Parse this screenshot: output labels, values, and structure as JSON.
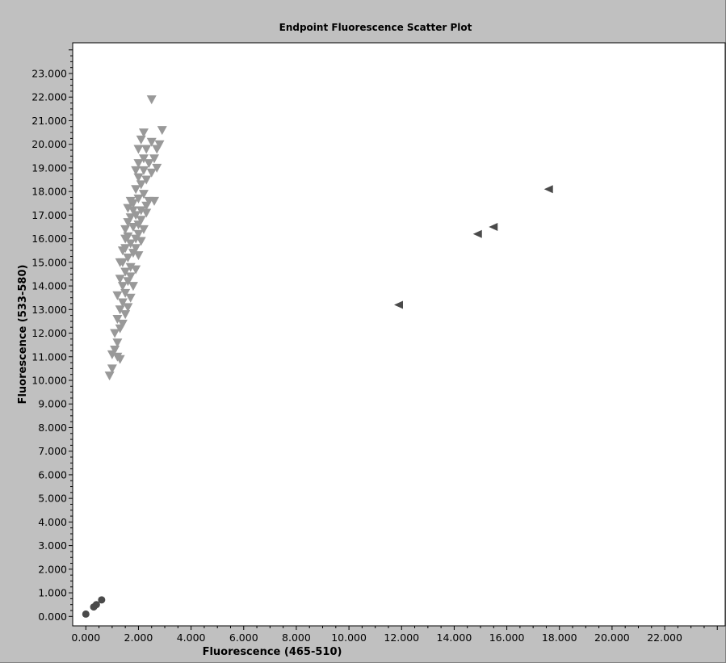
{
  "chart_data": {
    "type": "scatter",
    "title": "Endpoint Fluorescence Scatter Plot",
    "xlabel": "Fluorescence (465-510)",
    "ylabel": "Fluorescence (533-580)",
    "xlim": [
      -0.5,
      24.3
    ],
    "ylim": [
      -0.4,
      24.3
    ],
    "x_ticks": [
      "0.000",
      "2.000",
      "4.000",
      "6.000",
      "8.000",
      "10.000",
      "12.000",
      "14.000",
      "16.000",
      "18.000",
      "20.000",
      "22.000"
    ],
    "x_tick_values": [
      0,
      2,
      4,
      6,
      8,
      10,
      12,
      14,
      16,
      18,
      20,
      22
    ],
    "y_ticks": [
      "0.000",
      "1.000",
      "2.000",
      "3.000",
      "4.000",
      "5.000",
      "6.000",
      "7.000",
      "8.000",
      "9.000",
      "10.000",
      "11.000",
      "12.000",
      "13.000",
      "14.000",
      "15.000",
      "16.000",
      "17.000",
      "18.000",
      "19.000",
      "20.000",
      "21.000",
      "22.000",
      "23.000"
    ],
    "y_tick_values": [
      0,
      1,
      2,
      3,
      4,
      5,
      6,
      7,
      8,
      9,
      10,
      11,
      12,
      13,
      14,
      15,
      16,
      17,
      18,
      19,
      20,
      21,
      22,
      23
    ],
    "grid": false,
    "legend": "none",
    "series": [
      {
        "marker": "triangle-down",
        "color": "#999999",
        "points": [
          [
            0.9,
            10.2
          ],
          [
            1.0,
            10.5
          ],
          [
            1.0,
            11.1
          ],
          [
            1.1,
            11.3
          ],
          [
            1.2,
            11.0
          ],
          [
            1.3,
            10.9
          ],
          [
            1.2,
            11.6
          ],
          [
            1.1,
            12.0
          ],
          [
            1.3,
            12.2
          ],
          [
            1.2,
            12.6
          ],
          [
            1.4,
            12.4
          ],
          [
            1.5,
            12.8
          ],
          [
            1.3,
            13.0
          ],
          [
            1.4,
            13.3
          ],
          [
            1.6,
            13.1
          ],
          [
            1.2,
            13.6
          ],
          [
            1.5,
            13.7
          ],
          [
            1.7,
            13.5
          ],
          [
            1.4,
            14.0
          ],
          [
            1.3,
            14.3
          ],
          [
            1.6,
            14.2
          ],
          [
            1.8,
            14.0
          ],
          [
            1.5,
            14.6
          ],
          [
            1.7,
            14.8
          ],
          [
            1.4,
            15.0
          ],
          [
            1.9,
            14.7
          ],
          [
            1.6,
            15.2
          ],
          [
            1.8,
            15.4
          ],
          [
            1.5,
            15.6
          ],
          [
            2.0,
            15.3
          ],
          [
            1.7,
            15.8
          ],
          [
            1.6,
            16.1
          ],
          [
            1.9,
            16.0
          ],
          [
            2.1,
            15.9
          ],
          [
            1.5,
            16.4
          ],
          [
            1.8,
            16.5
          ],
          [
            2.0,
            16.6
          ],
          [
            1.7,
            16.9
          ],
          [
            2.2,
            16.4
          ],
          [
            1.9,
            17.0
          ],
          [
            1.6,
            17.3
          ],
          [
            2.1,
            17.2
          ],
          [
            1.8,
            17.5
          ],
          [
            2.3,
            17.1
          ],
          [
            2.0,
            17.7
          ],
          [
            1.7,
            17.6
          ],
          [
            2.2,
            17.9
          ],
          [
            1.9,
            18.1
          ],
          [
            2.4,
            17.6
          ],
          [
            2.1,
            18.3
          ],
          [
            2.6,
            17.6
          ],
          [
            2.0,
            18.6
          ],
          [
            2.3,
            18.5
          ],
          [
            1.9,
            18.9
          ],
          [
            2.2,
            18.9
          ],
          [
            2.5,
            18.8
          ],
          [
            2.0,
            19.2
          ],
          [
            2.4,
            19.2
          ],
          [
            2.7,
            19.0
          ],
          [
            2.2,
            19.4
          ],
          [
            2.6,
            19.4
          ],
          [
            2.0,
            19.8
          ],
          [
            2.3,
            19.8
          ],
          [
            2.7,
            19.8
          ],
          [
            2.5,
            20.1
          ],
          [
            2.1,
            20.2
          ],
          [
            2.8,
            20.0
          ],
          [
            2.2,
            20.5
          ],
          [
            2.9,
            20.6
          ],
          [
            2.5,
            21.9
          ],
          [
            1.3,
            15.0
          ],
          [
            1.4,
            15.5
          ],
          [
            1.5,
            16.0
          ],
          [
            1.6,
            16.7
          ],
          [
            1.8,
            17.2
          ],
          [
            1.7,
            14.4
          ],
          [
            1.9,
            15.6
          ],
          [
            2.0,
            16.2
          ],
          [
            2.1,
            16.8
          ],
          [
            2.3,
            17.4
          ]
        ]
      },
      {
        "marker": "triangle-left",
        "color": "#4a4a4a",
        "points": [
          [
            11.9,
            13.2
          ],
          [
            14.9,
            16.2
          ],
          [
            15.5,
            16.5
          ],
          [
            17.6,
            18.1
          ]
        ]
      },
      {
        "marker": "circle",
        "color": "#4a4a4a",
        "points": [
          [
            0.0,
            0.1
          ],
          [
            0.3,
            0.4
          ],
          [
            0.4,
            0.5
          ],
          [
            0.6,
            0.7
          ]
        ]
      }
    ]
  }
}
